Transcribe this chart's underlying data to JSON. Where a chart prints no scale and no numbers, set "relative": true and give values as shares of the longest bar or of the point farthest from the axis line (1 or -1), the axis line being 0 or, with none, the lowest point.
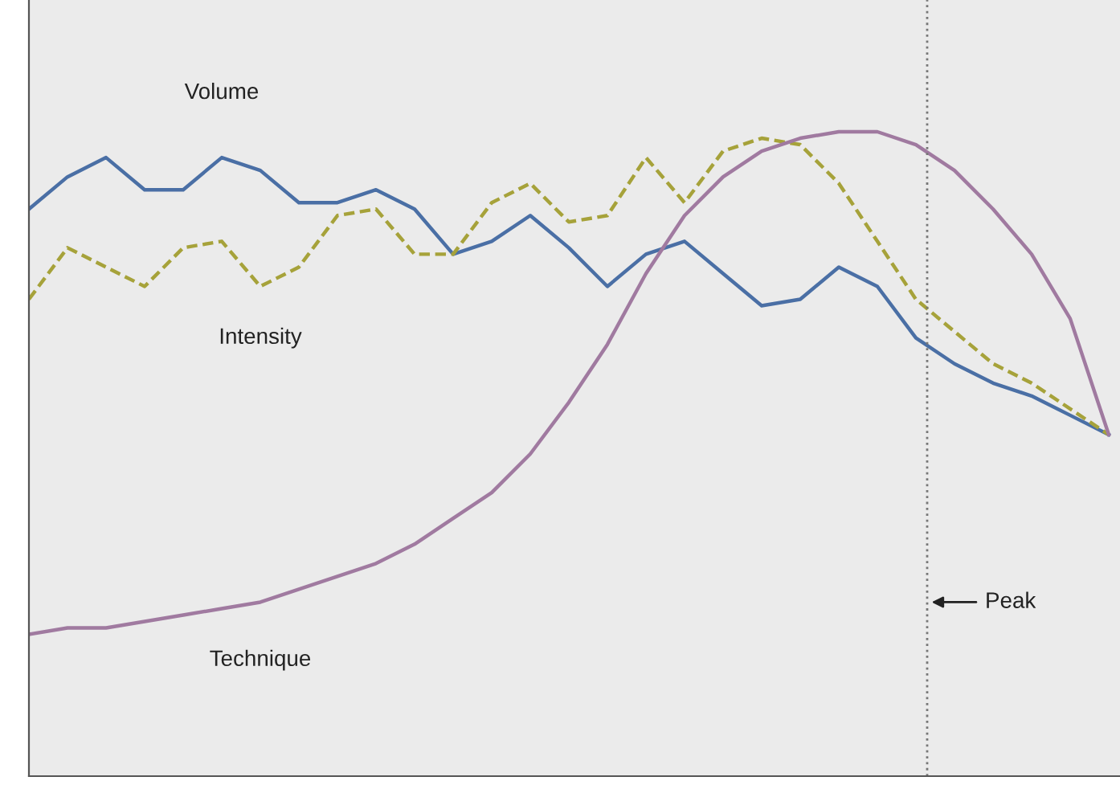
{
  "chart_data": {
    "type": "line",
    "relative": true,
    "grid": false,
    "legend": false,
    "marker": "none",
    "categories": [
      null,
      null,
      null,
      null,
      null,
      null,
      null,
      null,
      null,
      null,
      null,
      null,
      null,
      null,
      null,
      null,
      null,
      null,
      null,
      null,
      null,
      null,
      null,
      null,
      null,
      null,
      null,
      null,
      null
    ],
    "series": [
      {
        "name": "Volume",
        "color": "#4a6fa5",
        "line_style": "solid",
        "values": [
          0.88,
          0.93,
          0.96,
          0.91,
          0.91,
          0.96,
          0.94,
          0.89,
          0.89,
          0.91,
          0.88,
          0.81,
          0.83,
          0.87,
          0.82,
          0.76,
          0.81,
          0.83,
          0.78,
          0.73,
          0.74,
          0.79,
          0.76,
          0.68,
          0.64,
          0.61,
          0.59,
          0.56,
          0.53
        ]
      },
      {
        "name": "Intensity",
        "color": "#a6a23a",
        "line_style": "dashed",
        "values": [
          0.74,
          0.82,
          0.79,
          0.76,
          0.82,
          0.83,
          0.76,
          0.79,
          0.87,
          0.88,
          0.81,
          0.81,
          0.89,
          0.92,
          0.86,
          0.87,
          0.96,
          0.89,
          0.97,
          0.99,
          0.98,
          0.92,
          0.83,
          0.74,
          0.69,
          0.64,
          0.61,
          0.57,
          0.53
        ]
      },
      {
        "name": "Technique",
        "color": "#a07aa0",
        "line_style": "solid",
        "values": [
          0.22,
          0.23,
          0.23,
          0.24,
          0.25,
          0.26,
          0.27,
          0.29,
          0.31,
          0.33,
          0.36,
          0.4,
          0.44,
          0.5,
          0.58,
          0.67,
          0.78,
          0.87,
          0.93,
          0.97,
          0.99,
          1.0,
          1.0,
          0.98,
          0.94,
          0.88,
          0.81,
          0.71,
          0.53
        ]
      }
    ],
    "annotations": [
      "Peak"
    ]
  }
}
